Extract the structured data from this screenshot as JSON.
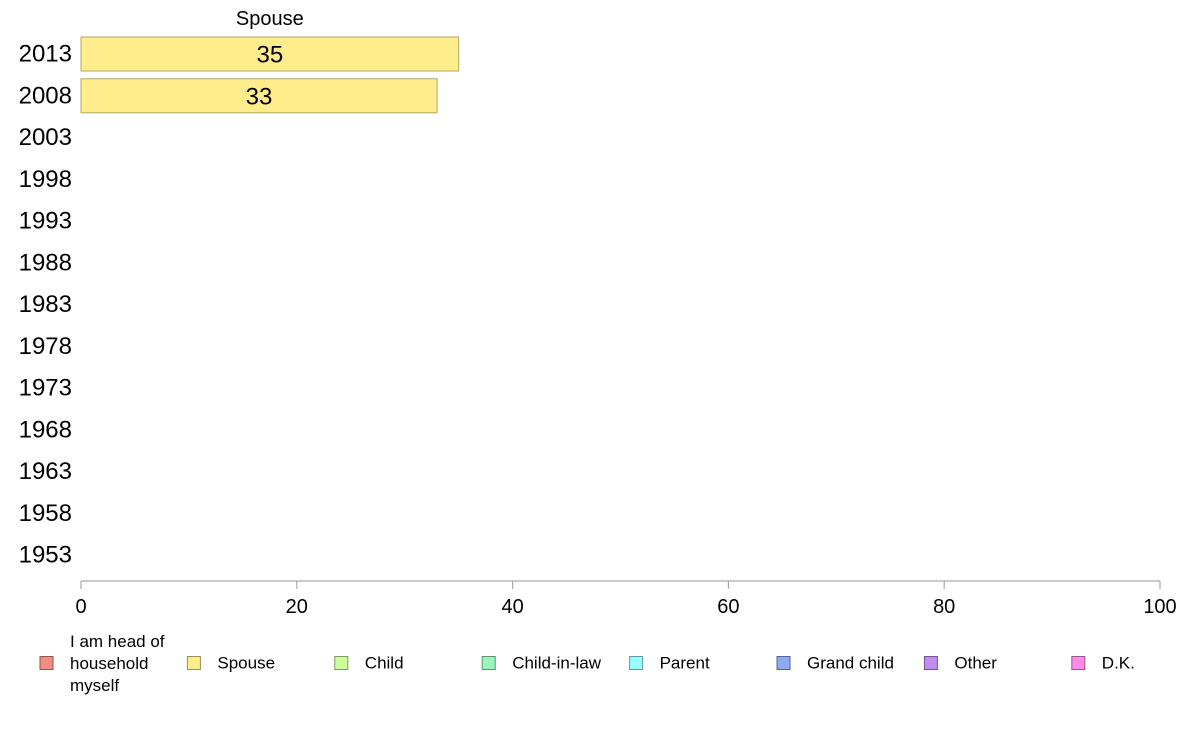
{
  "chart_data": {
    "type": "bar",
    "orientation": "horizontal",
    "stacked": true,
    "categories": [
      "2013",
      "2008",
      "2003",
      "1998",
      "1993",
      "1988",
      "1983",
      "1978",
      "1973",
      "1968",
      "1963",
      "1958",
      "1953"
    ],
    "series": [
      {
        "name": "I am head of household myself",
        "color": "#f28b82",
        "values": [
          null,
          null,
          null,
          null,
          null,
          null,
          null,
          null,
          null,
          null,
          null,
          null,
          null
        ]
      },
      {
        "name": "Spouse",
        "color": "#ffed8c",
        "values": [
          35,
          33,
          null,
          null,
          null,
          null,
          null,
          null,
          null,
          null,
          null,
          null,
          null
        ]
      },
      {
        "name": "Child",
        "color": "#ccff99",
        "values": [
          null,
          null,
          null,
          null,
          null,
          null,
          null,
          null,
          null,
          null,
          null,
          null,
          null
        ]
      },
      {
        "name": "Child-in-law",
        "color": "#99f5b8",
        "values": [
          null,
          null,
          null,
          null,
          null,
          null,
          null,
          null,
          null,
          null,
          null,
          null,
          null
        ]
      },
      {
        "name": "Parent",
        "color": "#99ffff",
        "values": [
          null,
          null,
          null,
          null,
          null,
          null,
          null,
          null,
          null,
          null,
          null,
          null,
          null
        ]
      },
      {
        "name": "Grand child",
        "color": "#8fa8f2",
        "values": [
          null,
          null,
          null,
          null,
          null,
          null,
          null,
          null,
          null,
          null,
          null,
          null,
          null
        ]
      },
      {
        "name": "Other",
        "color": "#c08cf2",
        "values": [
          null,
          null,
          null,
          null,
          null,
          null,
          null,
          null,
          null,
          null,
          null,
          null,
          null
        ]
      },
      {
        "name": "D.K.",
        "color": "#ff8ce6",
        "values": [
          null,
          null,
          null,
          null,
          null,
          null,
          null,
          null,
          null,
          null,
          null,
          null,
          null
        ]
      }
    ],
    "data_labels": [
      {
        "category": "2013",
        "series": "Spouse",
        "text": "35"
      },
      {
        "category": "2008",
        "series": "Spouse",
        "text": "33"
      }
    ],
    "segment_header": {
      "series": "Spouse",
      "text": "Spouse"
    },
    "xlim": [
      0,
      100
    ],
    "xticks": [
      0,
      20,
      40,
      60,
      80,
      100
    ],
    "title": "",
    "xlabel": "",
    "ylabel": "",
    "grid": false,
    "legend": {
      "position": "bottom",
      "entries": [
        "I am head of household myself",
        "Spouse",
        "Child",
        "Child-in-law",
        "Parent",
        "Grand child",
        "Other",
        "D.K."
      ]
    }
  }
}
